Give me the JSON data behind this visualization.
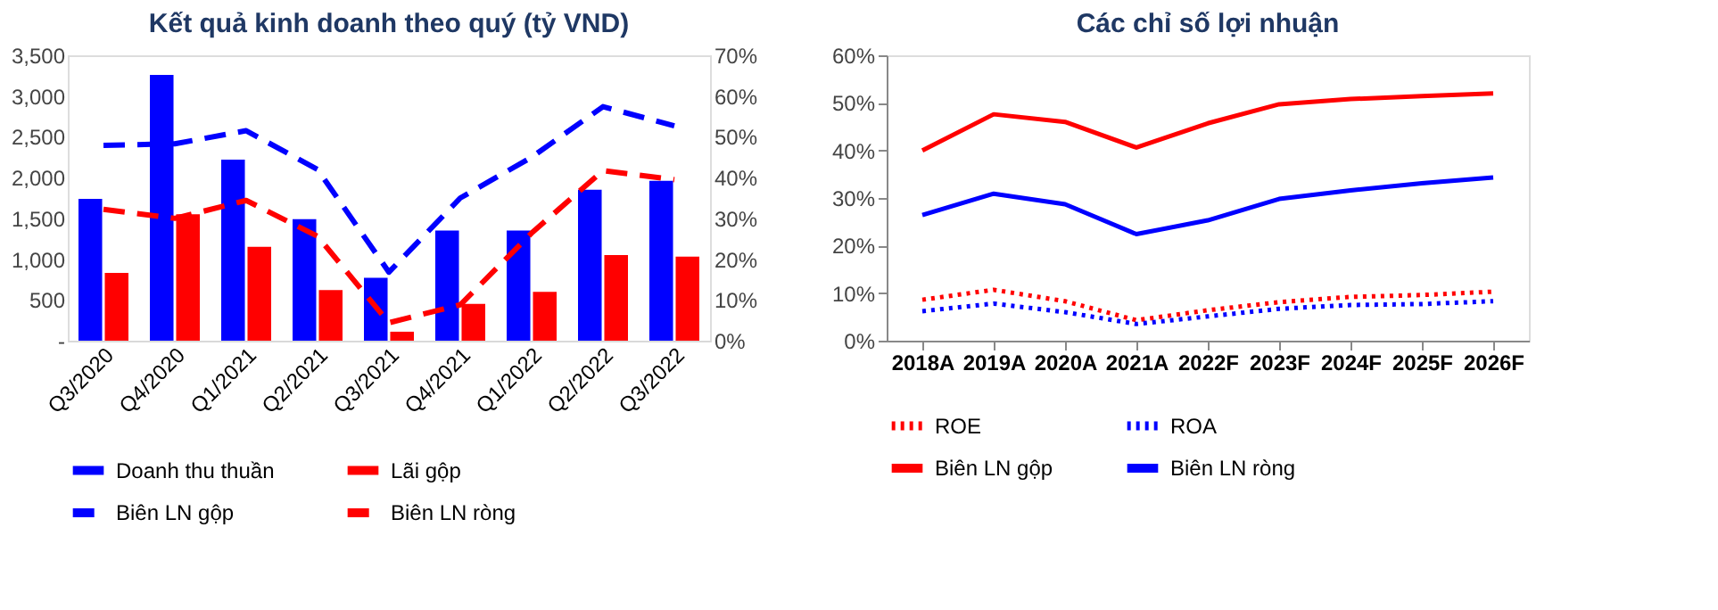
{
  "chart_data": [
    {
      "type": "bar",
      "title": "Kết quả kinh doanh theo quý (tỷ VND)",
      "categories": [
        "Q3/2020",
        "Q4/2020",
        "Q1/2021",
        "Q2/2021",
        "Q3/2021",
        "Q4/2021",
        "Q1/2022",
        "Q2/2022",
        "Q3/2022"
      ],
      "series": [
        {
          "name": "Doanh thu thuần",
          "color": "#0000ff",
          "values": [
            1740,
            3260,
            2220,
            1490,
            770,
            1350,
            1350,
            1850,
            1960
          ]
        },
        {
          "name": "Lãi gộp",
          "color": "#ff0000",
          "values": [
            830,
            1550,
            1150,
            620,
            110,
            450,
            600,
            1050,
            1030
          ]
        },
        {
          "name": "Biên LN gộp",
          "color": "#0000ff",
          "type": "line",
          "axis": "y2",
          "line_style": "dashed",
          "values": [
            47.9,
            48.3,
            51.5,
            42,
            16.8,
            35,
            45,
            57.4,
            52.7
          ]
        },
        {
          "name": "Biên LN ròng",
          "color": "#ff0000",
          "type": "line",
          "axis": "y2",
          "line_style": "dashed",
          "values": [
            32.2,
            30,
            34.4,
            25.6,
            4.4,
            8.8,
            26.4,
            41.7,
            39.5
          ]
        }
      ],
      "ylim": [
        0,
        3500
      ],
      "yticks": [
        {
          "value": 0,
          "label": "-"
        },
        {
          "value": 500,
          "label": "500"
        },
        {
          "value": 1000,
          "label": "1,000"
        },
        {
          "value": 1500,
          "label": "1,500"
        },
        {
          "value": 2000,
          "label": "2,000"
        },
        {
          "value": 2500,
          "label": "2,500"
        },
        {
          "value": 3000,
          "label": "3,000"
        },
        {
          "value": 3500,
          "label": "3,500"
        }
      ],
      "y2lim": [
        0,
        70
      ],
      "y2ticks": [
        {
          "value": 0,
          "label": "0%"
        },
        {
          "value": 10,
          "label": "10%"
        },
        {
          "value": 20,
          "label": "20%"
        },
        {
          "value": 30,
          "label": "30%"
        },
        {
          "value": 40,
          "label": "40%"
        },
        {
          "value": 50,
          "label": "50%"
        },
        {
          "value": 60,
          "label": "60%"
        },
        {
          "value": 70,
          "label": "70%"
        }
      ],
      "grid": false,
      "legend": "bottom"
    },
    {
      "type": "line",
      "title": "Các chỉ số lợi nhuận",
      "categories": [
        "2018A",
        "2019A",
        "2020A",
        "2021A",
        "2022F",
        "2023F",
        "2024F",
        "2025F",
        "2026F"
      ],
      "series": [
        {
          "name": "ROE",
          "color": "#ff0000",
          "line_style": "dotted",
          "values": [
            8.6,
            10.7,
            8.3,
            4.3,
            6.4,
            8.1,
            9.2,
            9.6,
            10.3
          ]
        },
        {
          "name": "ROA",
          "color": "#0000ff",
          "line_style": "dotted",
          "values": [
            6.2,
            7.8,
            6.0,
            3.5,
            5.1,
            6.7,
            7.5,
            7.7,
            8.3
          ]
        },
        {
          "name": "Biên LN gộp",
          "color": "#ff0000",
          "line_style": "solid",
          "values": [
            40.0,
            47.6,
            46.0,
            40.6,
            45.7,
            49.7,
            50.8,
            51.4,
            52.0
          ]
        },
        {
          "name": "Biên LN ròng",
          "color": "#0000ff",
          "line_style": "solid",
          "values": [
            26.4,
            30.9,
            28.7,
            22.4,
            25.3,
            29.8,
            31.6,
            33.1,
            34.3
          ]
        }
      ],
      "ylim": [
        0,
        60
      ],
      "yticks": [
        {
          "value": 0,
          "label": "0%"
        },
        {
          "value": 10,
          "label": "10%"
        },
        {
          "value": 20,
          "label": "20%"
        },
        {
          "value": 30,
          "label": "30%"
        },
        {
          "value": 40,
          "label": "40%"
        },
        {
          "value": 50,
          "label": "50%"
        },
        {
          "value": 60,
          "label": "60%"
        }
      ],
      "grid": false,
      "legend": "bottom"
    }
  ]
}
